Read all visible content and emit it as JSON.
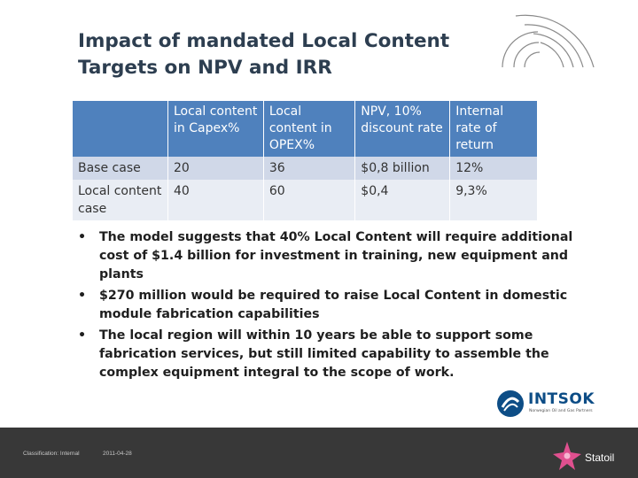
{
  "title": {
    "line1": "Impact of mandated Local Content",
    "line2": "Targets on NPV and IRR"
  },
  "table": {
    "headers": [
      "",
      "Local content in Capex%",
      "Local content in OPEX%",
      "NPV, 10% discount rate",
      "Internal rate of return"
    ],
    "rows": [
      [
        "Base case",
        "20",
        "36",
        "$0,8 billion",
        "12%"
      ],
      [
        "Local content case",
        "40",
        "60",
        "$0,4",
        "9,3%"
      ]
    ]
  },
  "bullets": [
    "The model suggests that 40% Local Content will require additional cost of $1.4 billion for investment in training, new equipment and plants",
    "$270 million would be required to raise Local Content in domestic module fabrication capabilities",
    "The local region will within 10 years be able to support some fabrication services, but still limited capability to assemble the complex equipment integral to the scope of work."
  ],
  "logos": {
    "intsok_name": "INTSOK",
    "intsok_tagline": "Norwegian Oil and Gas Partners",
    "statoil_name": "Statoil"
  },
  "footer": {
    "classification": "Classification: Internal",
    "date": "2011-04-28"
  },
  "colors": {
    "header_blue": "#4f81bd",
    "row_band_1": "#d0d8e8",
    "row_band_2": "#e9edf4",
    "title_color": "#2d3e50",
    "footer_bg": "#383838"
  }
}
